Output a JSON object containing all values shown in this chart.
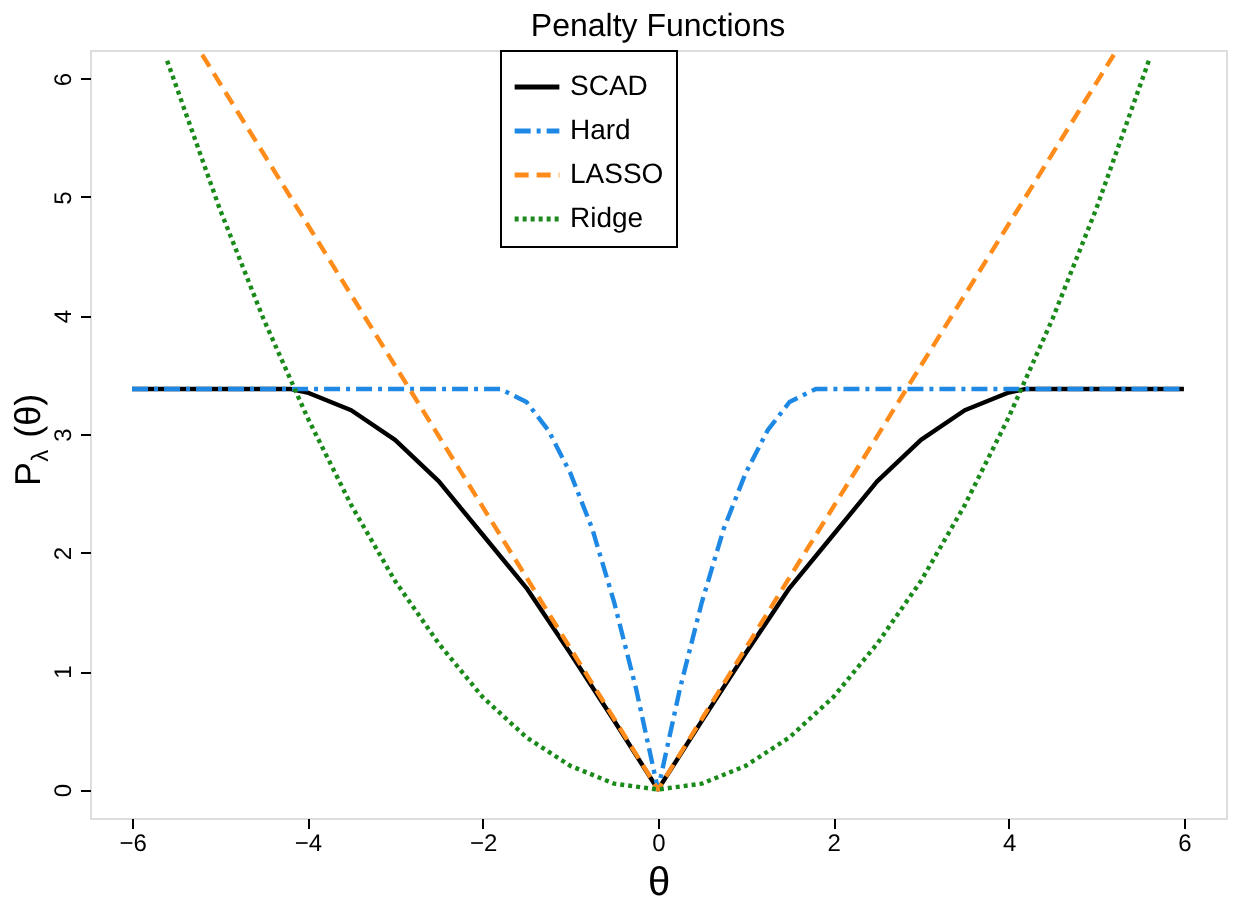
{
  "chart_data": {
    "type": "line",
    "title": "Penalty Functions",
    "xlabel": "θ",
    "ylabel": "P$_{λ}$(θ)",
    "xlim": [
      -6.48,
      6.48
    ],
    "ylim": [
      -0.24,
      6.24
    ],
    "xticks": [
      -6,
      -4,
      -2,
      0,
      2,
      4,
      6
    ],
    "yticks": [
      0,
      1,
      2,
      3,
      4,
      5,
      6
    ],
    "grid": false,
    "legend": "top",
    "marker": "none",
    "series": [
      {
        "name": "SCAD",
        "color": "#000000",
        "line_style": "solid",
        "x": [
          -6,
          -4.2,
          -4,
          -3.5,
          -3,
          -2.5,
          -2,
          -1.5,
          -1,
          -0.5,
          0,
          0.5,
          1,
          1.5,
          2,
          2.5,
          3,
          3.5,
          4,
          4.2,
          6
        ],
        "values": [
          3.38,
          3.38,
          3.35,
          3.2,
          2.95,
          2.6,
          2.15,
          1.7,
          1.15,
          0.58,
          0,
          0.58,
          1.15,
          1.7,
          2.15,
          2.6,
          2.95,
          3.2,
          3.35,
          3.38,
          3.38
        ]
      },
      {
        "name": "Hard",
        "color": "#1e88e5",
        "line_style": "dashdot",
        "x": [
          -6,
          -1.8,
          -1.5,
          -1.25,
          -1,
          -0.75,
          -0.5,
          -0.25,
          0,
          0.25,
          0.5,
          0.75,
          1,
          1.25,
          1.5,
          1.8,
          6
        ],
        "values": [
          3.38,
          3.38,
          3.27,
          3.03,
          2.67,
          2.2,
          1.58,
          0.85,
          0,
          0.85,
          1.58,
          2.2,
          2.67,
          3.03,
          3.27,
          3.38,
          3.38
        ]
      },
      {
        "name": "LASSO",
        "color": "#ff8c1a",
        "line_style": "dashed",
        "x": [
          -5.2,
          0,
          5.2
        ],
        "values": [
          6.2,
          0,
          6.2
        ]
      },
      {
        "name": "Ridge",
        "color": "#1a8a1a",
        "line_style": "dotted",
        "x": [
          -5.6,
          -5,
          -4.5,
          -4,
          -3.5,
          -3,
          -2.5,
          -2,
          -1.5,
          -1,
          -0.5,
          0,
          0.5,
          1,
          1.5,
          2,
          2.5,
          3,
          3.5,
          4,
          4.5,
          5,
          5.6
        ],
        "values": [
          6.15,
          4.9,
          3.97,
          3.14,
          2.4,
          1.76,
          1.23,
          0.78,
          0.44,
          0.2,
          0.05,
          0,
          0.05,
          0.2,
          0.44,
          0.78,
          1.23,
          1.76,
          2.4,
          3.14,
          3.97,
          4.9,
          6.15
        ]
      }
    ]
  }
}
